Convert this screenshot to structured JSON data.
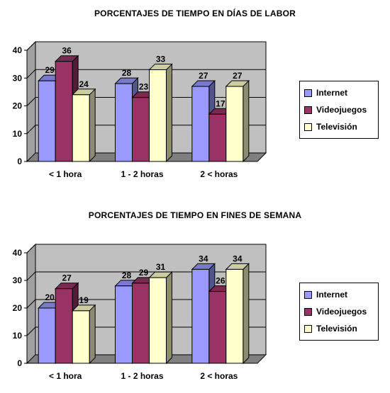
{
  "colors": {
    "internet": "#9999ff",
    "videojuegos": "#993366",
    "television": "#ffffcc",
    "wall": "#c0c0c0",
    "floor": "#808080"
  },
  "legend": [
    {
      "label": "Internet",
      "color": "#9999ff"
    },
    {
      "label": "Videojuegos",
      "color": "#993366"
    },
    {
      "label": "Televisión",
      "color": "#ffffcc"
    }
  ],
  "chart_data": [
    {
      "type": "bar",
      "title": "PORCENTAJES DE TIEMPO EN DÍAS DE LABOR",
      "categories": [
        "< 1 hora",
        "1 - 2 horas",
        "2 < horas"
      ],
      "series": [
        {
          "name": "Internet",
          "values": [
            29,
            28,
            27
          ]
        },
        {
          "name": "Videojuegos",
          "values": [
            36,
            23,
            17
          ]
        },
        {
          "name": "Televisión",
          "values": [
            24,
            33,
            27
          ]
        }
      ],
      "ylim": [
        0,
        40
      ],
      "yticks": [
        0,
        10,
        20,
        30,
        40
      ],
      "grid": true,
      "legend_position": "right"
    },
    {
      "type": "bar",
      "title": "PORCENTAJES DE TIEMPO EN FINES DE SEMANA",
      "categories": [
        "< 1 hora",
        "1 - 2 horas",
        "2 < horas"
      ],
      "series": [
        {
          "name": "Internet",
          "values": [
            20,
            28,
            34
          ]
        },
        {
          "name": "Videojuegos",
          "values": [
            27,
            29,
            26
          ]
        },
        {
          "name": "Televisión",
          "values": [
            19,
            31,
            34
          ]
        }
      ],
      "ylim": [
        0,
        40
      ],
      "yticks": [
        0,
        10,
        20,
        30,
        40
      ],
      "grid": true,
      "legend_position": "right"
    }
  ]
}
